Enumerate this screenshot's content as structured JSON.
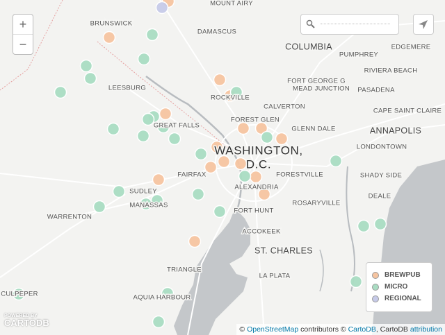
{
  "map": {
    "zoom_in": "+",
    "zoom_out": "−",
    "places": [
      "MOUNT AIRY",
      "BRUNSWICK",
      "DAMASCUS",
      "COLUMBIA",
      "EDGEMERE",
      "PUMPHREY",
      "RIVIERA BEACH",
      "FORT GEORGE G",
      "MEAD JUNCTION",
      "LEESBURG",
      "PASADENA",
      "ROCKVILLE",
      "CAPE SAINT CLAIRE",
      "CALVERTON",
      "FOREST GLEN",
      "GREAT FALLS",
      "GLENN DALE",
      "ANNAPOLIS",
      "LONDONTOWN",
      "WASHINGTON,",
      "D.C.",
      "FAIRFAX",
      "FORESTVILLE",
      "SHADY SIDE",
      "ALEXANDRIA",
      "SUDLEY",
      "DEALE",
      "MANASSAS",
      "ROSARYVILLE",
      "FORT HUNT",
      "WARRENTON",
      "ACCOKEEK",
      "ST. CHARLES",
      "TRIANGLE",
      "LA PLATA",
      "CULPEPER",
      "AQUIA HARBOUR"
    ],
    "legend": [
      {
        "label": "BREWPUB",
        "color": "#f6c4a0"
      },
      {
        "label": "MICRO",
        "color": "#a9dcc2"
      },
      {
        "label": "REGIONAL",
        "color": "#c6cae8"
      }
    ],
    "logo": {
      "line1": "POWERED BY",
      "line2": "CARTODB"
    },
    "attribution": {
      "c1": "©",
      "osm": "OpenStreetMap",
      "mid": "contributors ©",
      "carto": "CartoDB",
      "sep": ", CartoDB",
      "attr": "attribution"
    }
  }
}
